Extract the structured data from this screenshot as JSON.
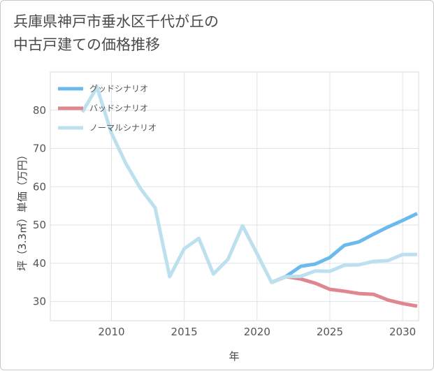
{
  "title": {
    "line1": "兵庫県神戸市垂水区千代が丘の",
    "line2": "中古戸建ての価格推移"
  },
  "chart_data": {
    "type": "line",
    "title": "兵庫県神戸市垂水区千代が丘の中古戸建ての価格推移",
    "xlabel": "年",
    "ylabel": "坪（3.3㎡）単価（万円）",
    "xlim": [
      2005.8,
      2031.1
    ],
    "ylim": [
      25,
      90
    ],
    "x_ticks": [
      2010,
      2015,
      2020,
      2025,
      2030
    ],
    "y_ticks": [
      30,
      40,
      50,
      60,
      70,
      80
    ],
    "grid": true,
    "legend_position": "top-left",
    "series": [
      {
        "name": "グッドシナリオ",
        "color": "#6cb9ee",
        "x": [
          2021,
          2022,
          2023,
          2024,
          2025,
          2026,
          2027,
          2028,
          2029,
          2030,
          2031
        ],
        "values": [
          35.0,
          36.6,
          39.2,
          39.8,
          41.5,
          44.7,
          45.6,
          47.6,
          49.5,
          51.2,
          53.0
        ]
      },
      {
        "name": "バッドシナリオ",
        "color": "#e0868f",
        "x": [
          2021,
          2022,
          2023,
          2024,
          2025,
          2026,
          2027,
          2028,
          2029,
          2030,
          2031
        ],
        "values": [
          35.0,
          36.5,
          35.9,
          34.8,
          33.2,
          32.7,
          32.1,
          31.9,
          30.4,
          29.5,
          28.8
        ]
      },
      {
        "name": "ノーマルシナリオ",
        "color": "#bde0ee",
        "x": [
          2008,
          2009,
          2010,
          2011,
          2012,
          2013,
          2014,
          2015,
          2016,
          2017,
          2018,
          2019,
          2020,
          2021,
          2022,
          2023,
          2024,
          2025,
          2026,
          2027,
          2028,
          2029,
          2030,
          2031
        ],
        "values": [
          79.5,
          86.0,
          74.0,
          66.0,
          59.5,
          54.5,
          36.5,
          43.8,
          46.5,
          37.2,
          41.0,
          49.8,
          42.5,
          35.0,
          36.5,
          36.6,
          38.0,
          37.9,
          39.5,
          39.6,
          40.5,
          40.7,
          42.3,
          42.3
        ]
      }
    ]
  }
}
